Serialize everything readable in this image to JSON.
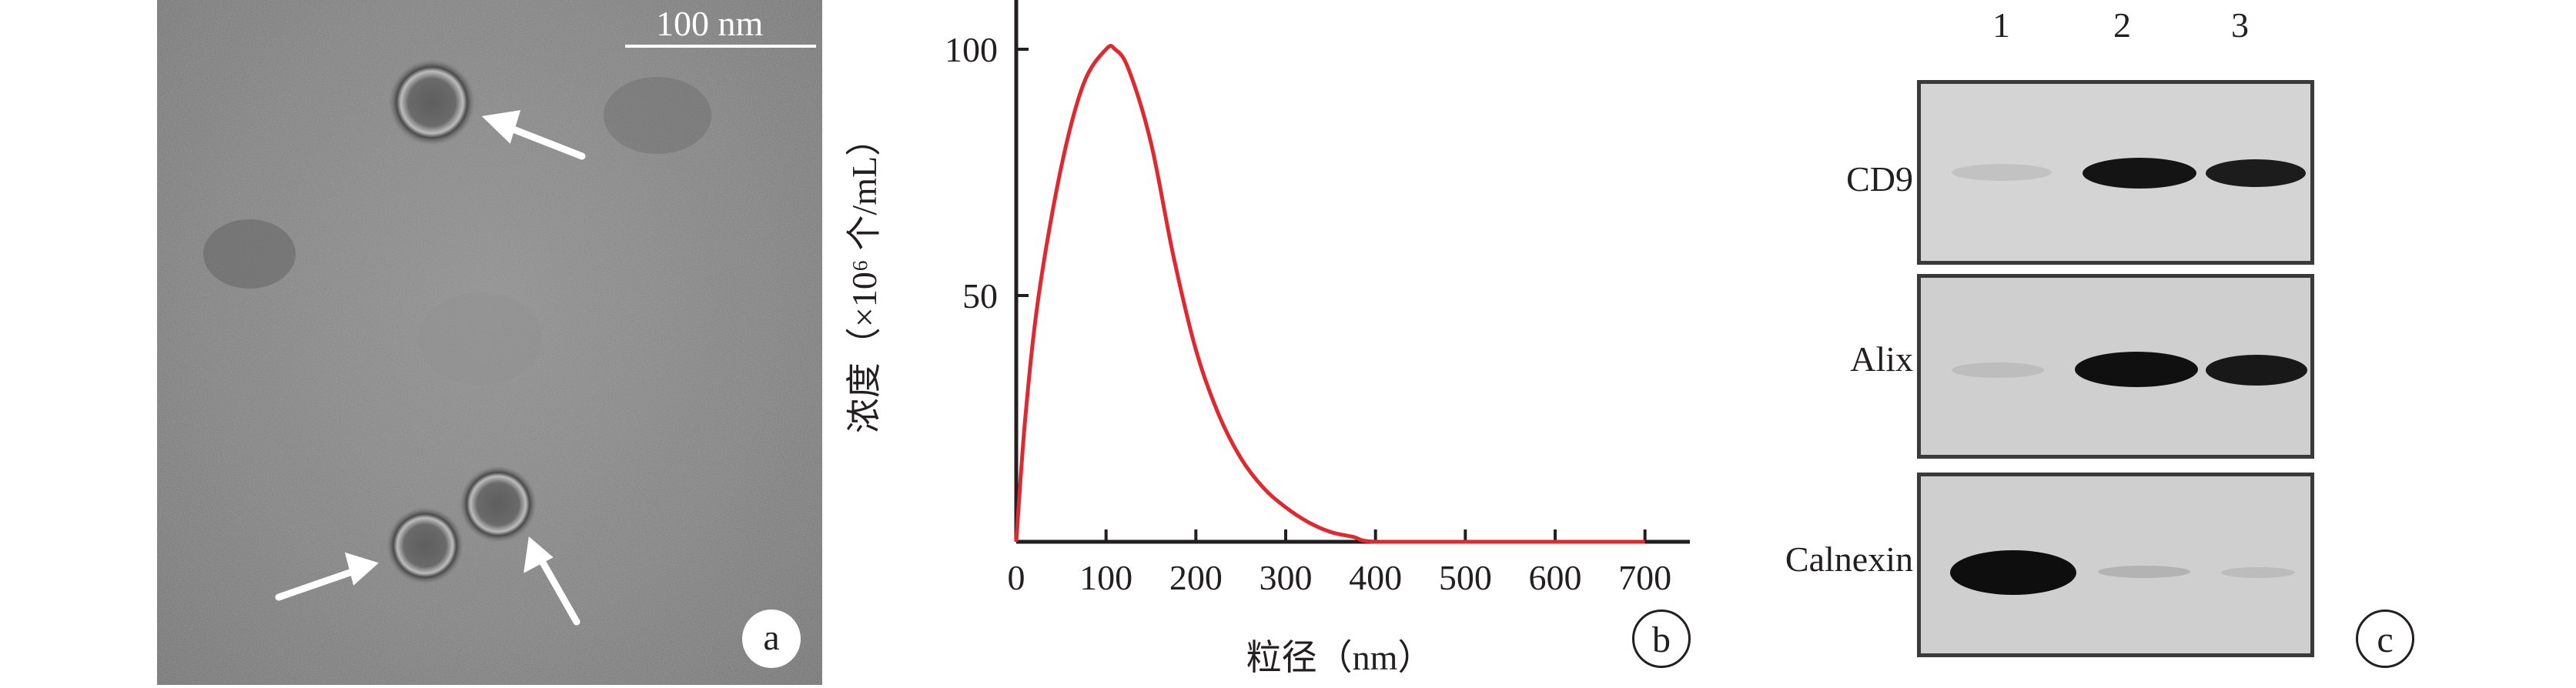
{
  "panel_a": {
    "scale_bar_label": "100 nm",
    "letter": "a"
  },
  "panel_b": {
    "letter": "b",
    "chart_data": {
      "type": "line",
      "xlabel": "粒径（nm）",
      "ylabel": "浓度（×10⁶ 个/mL）",
      "xlim": [
        0,
        750
      ],
      "ylim": [
        0,
        110
      ],
      "x_ticks": [
        0,
        100,
        200,
        300,
        400,
        500,
        600,
        700
      ],
      "y_ticks": [
        50,
        100
      ],
      "grid": false,
      "series": [
        {
          "color": "#e0282f",
          "x": [
            0,
            10,
            25,
            50,
            75,
            100,
            110,
            125,
            150,
            175,
            200,
            225,
            250,
            275,
            300,
            325,
            350,
            375,
            400,
            500,
            600,
            700
          ],
          "y": [
            0,
            25,
            50,
            76,
            93,
            100,
            100,
            96,
            81,
            58,
            39,
            26,
            17,
            11,
            7,
            4,
            2,
            1,
            0,
            0,
            0,
            0
          ]
        }
      ]
    }
  },
  "panel_c": {
    "letter": "c",
    "lanes": [
      "1",
      "2",
      "3"
    ],
    "rows": [
      {
        "label": "CD9"
      },
      {
        "label": "Alix"
      },
      {
        "label": "Calnexin"
      }
    ]
  }
}
